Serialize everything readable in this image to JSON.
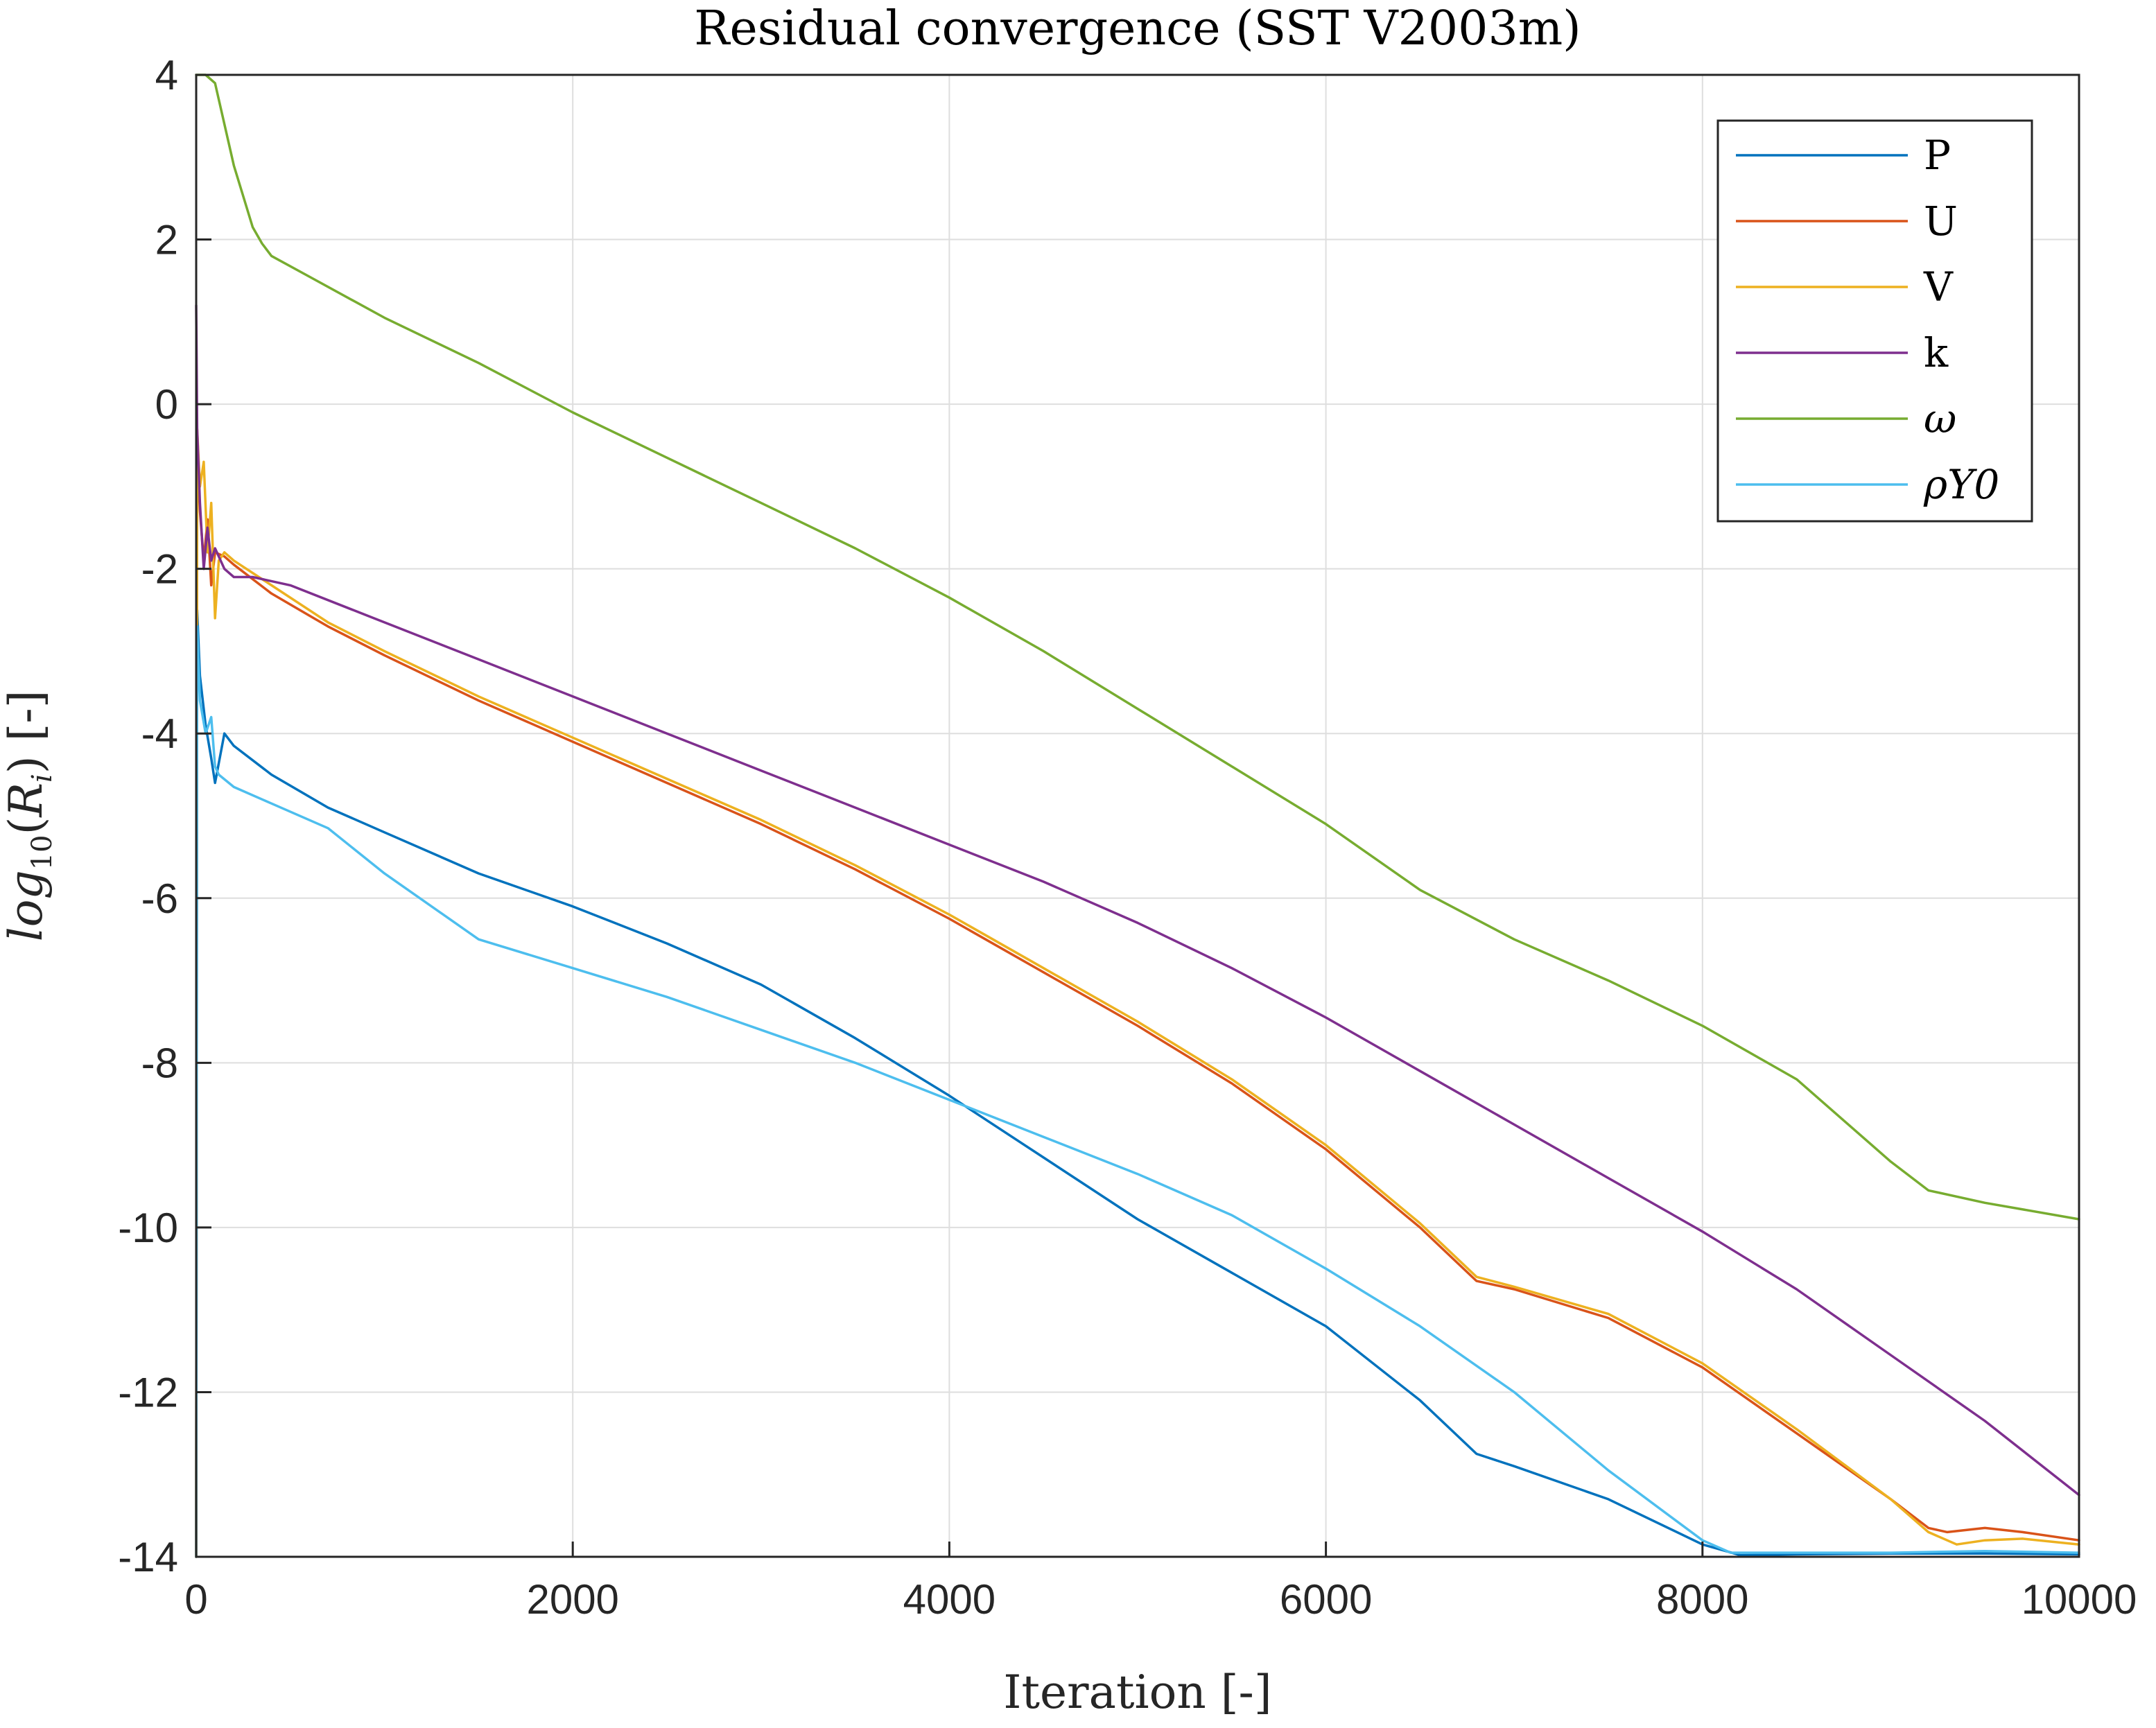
{
  "chart_data": {
    "type": "line",
    "title": "Residual convergence (SST V2003m)",
    "xlabel": "Iteration [-]",
    "ylabel": "log10(R_i) [-]",
    "xlim": [
      0,
      10000
    ],
    "ylim": [
      -14,
      4
    ],
    "xticks": [
      0,
      2000,
      4000,
      6000,
      8000,
      10000
    ],
    "xtick_labels": [
      "0",
      "2000",
      "4000",
      "6000",
      "8000",
      "10000"
    ],
    "yticks": [
      4,
      2,
      0,
      -2,
      -4,
      -6,
      -8,
      -10,
      -12,
      -14
    ],
    "ytick_labels": [
      "4",
      "2",
      "0",
      "-2",
      "-4",
      "-6",
      "-8",
      "-10",
      "-12",
      "-14"
    ],
    "grid": true,
    "legend_position": "top-right",
    "series": [
      {
        "name": "P",
        "color": "#0072BD",
        "x": [
          0,
          5,
          20,
          50,
          80,
          100,
          150,
          200,
          400,
          700,
          1000,
          1500,
          2000,
          2500,
          3000,
          3500,
          4000,
          4500,
          5000,
          5500,
          6000,
          6500,
          6800,
          7000,
          7500,
          8000,
          8200,
          8500,
          9000,
          9500,
          10000
        ],
        "y": [
          -14,
          -2.5,
          -3.3,
          -3.9,
          -4.3,
          -4.6,
          -4.0,
          -4.15,
          -4.5,
          -4.9,
          -5.2,
          -5.7,
          -6.1,
          -6.55,
          -7.05,
          -7.7,
          -8.4,
          -9.15,
          -9.9,
          -10.55,
          -11.2,
          -12.1,
          -12.75,
          -12.9,
          -13.3,
          -13.85,
          -13.98,
          -13.97,
          -13.96,
          -13.96,
          -13.97
        ]
      },
      {
        "name": "U",
        "color": "#D95319",
        "x": [
          0,
          5,
          20,
          40,
          60,
          80,
          100,
          150,
          200,
          400,
          700,
          1000,
          1500,
          2000,
          2500,
          3000,
          3500,
          4000,
          4500,
          5000,
          5500,
          6000,
          6500,
          6800,
          7000,
          7500,
          8000,
          8500,
          9000,
          9200,
          9300,
          9500,
          9700,
          10000
        ],
        "y": [
          -14,
          -0.5,
          -1.3,
          -1.9,
          -1.4,
          -2.2,
          -1.8,
          -1.85,
          -1.95,
          -2.3,
          -2.7,
          -3.05,
          -3.6,
          -4.1,
          -4.6,
          -5.1,
          -5.65,
          -6.25,
          -6.9,
          -7.55,
          -8.25,
          -9.05,
          -10.0,
          -10.65,
          -10.75,
          -11.1,
          -11.7,
          -12.5,
          -13.3,
          -13.65,
          -13.7,
          -13.65,
          -13.7,
          -13.8
        ]
      },
      {
        "name": "V",
        "color": "#EDB120",
        "x": [
          0,
          5,
          20,
          40,
          60,
          80,
          100,
          120,
          150,
          200,
          400,
          700,
          1000,
          1500,
          2000,
          2500,
          3000,
          3500,
          4000,
          4500,
          5000,
          5500,
          6000,
          6500,
          6800,
          7000,
          7500,
          8000,
          8500,
          9000,
          9200,
          9350,
          9500,
          9700,
          10000
        ],
        "y": [
          -14,
          -0.3,
          -1.0,
          -0.7,
          -1.8,
          -1.2,
          -2.6,
          -1.9,
          -1.8,
          -1.9,
          -2.2,
          -2.65,
          -3.0,
          -3.55,
          -4.05,
          -4.55,
          -5.05,
          -5.6,
          -6.2,
          -6.85,
          -7.5,
          -8.2,
          -9.0,
          -9.95,
          -10.6,
          -10.72,
          -11.05,
          -11.65,
          -12.45,
          -13.3,
          -13.7,
          -13.85,
          -13.8,
          -13.78,
          -13.85
        ]
      },
      {
        "name": "k",
        "color": "#7E2F8E",
        "x": [
          0,
          5,
          20,
          40,
          60,
          80,
          100,
          150,
          200,
          300,
          500,
          1000,
          1500,
          2000,
          2500,
          3000,
          3500,
          4000,
          4500,
          5000,
          5500,
          6000,
          6500,
          7000,
          7500,
          8000,
          8500,
          9000,
          9500,
          10000
        ],
        "y": [
          1.2,
          -0.3,
          -1.2,
          -2.0,
          -1.5,
          -1.9,
          -1.75,
          -2.0,
          -2.1,
          -2.1,
          -2.2,
          -2.65,
          -3.1,
          -3.55,
          -4.0,
          -4.45,
          -4.9,
          -5.35,
          -5.8,
          -6.3,
          -6.85,
          -7.45,
          -8.1,
          -8.75,
          -9.4,
          -10.05,
          -10.75,
          -11.55,
          -12.35,
          -13.25
        ]
      },
      {
        "name": "ω",
        "color": "#77AC30",
        "x": [
          0,
          50,
          100,
          200,
          300,
          350,
          400,
          600,
          1000,
          1500,
          2000,
          2500,
          3000,
          3500,
          4000,
          4500,
          5000,
          5500,
          6000,
          6500,
          7000,
          7500,
          8000,
          8500,
          9000,
          9200,
          9500,
          10000
        ],
        "y": [
          4.8,
          4.4,
          3.9,
          2.9,
          2.15,
          1.95,
          1.8,
          1.55,
          1.05,
          0.5,
          -0.1,
          -0.65,
          -1.2,
          -1.75,
          -2.35,
          -3.0,
          -3.7,
          -4.4,
          -5.1,
          -5.9,
          -6.5,
          -7.0,
          -7.55,
          -8.2,
          -9.2,
          -9.55,
          -9.7,
          -9.9
        ]
      },
      {
        "name": "ρY0",
        "color": "#4DBEEE",
        "x": [
          0,
          5,
          20,
          50,
          80,
          100,
          120,
          200,
          400,
          700,
          1000,
          1500,
          2000,
          2500,
          3000,
          3500,
          4000,
          4500,
          5000,
          5500,
          6000,
          6500,
          7000,
          7500,
          8000,
          8150,
          8500,
          9000,
          9500,
          10000
        ],
        "y": [
          -14,
          -2.7,
          -3.6,
          -4.0,
          -3.8,
          -4.4,
          -4.5,
          -4.65,
          -4.85,
          -5.15,
          -5.7,
          -6.5,
          -6.85,
          -7.2,
          -7.6,
          -8.0,
          -8.45,
          -8.9,
          -9.35,
          -9.85,
          -10.5,
          -11.2,
          -12.0,
          -12.95,
          -13.8,
          -13.95,
          -13.95,
          -13.95,
          -13.93,
          -13.95
        ]
      }
    ]
  },
  "legend": {
    "entries": [
      "P",
      "U",
      "V",
      "k",
      "ω",
      "ρY0"
    ]
  }
}
